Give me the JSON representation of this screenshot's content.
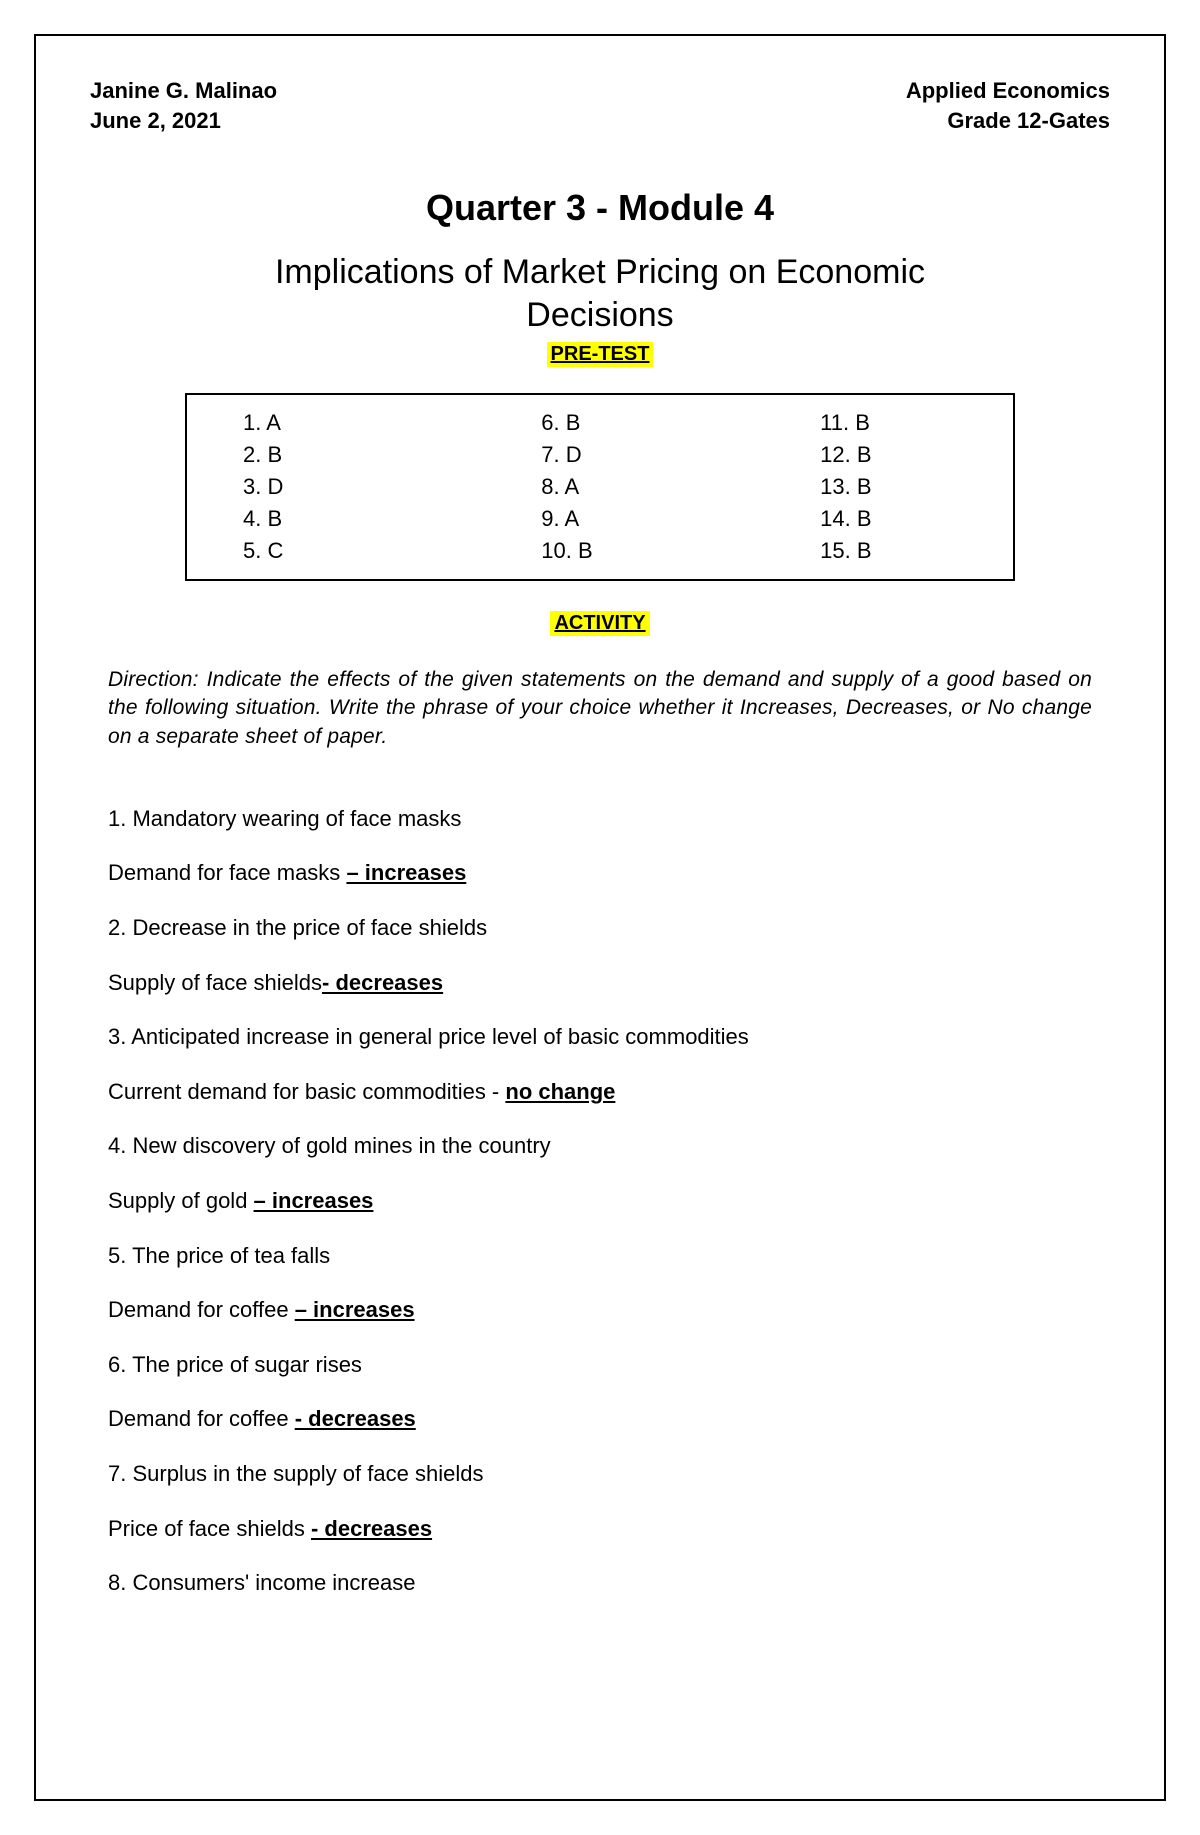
{
  "header": {
    "left_name": "Janine G. Malinao",
    "left_date": "June 2, 2021",
    "right_subject": "Applied Economics",
    "right_class": "Grade 12-Gates"
  },
  "module": {
    "title": "Quarter 3 - Module 4",
    "subtitle": "Implications of Market Pricing on Economic Decisions"
  },
  "labels": {
    "pretest": "PRE-TEST",
    "activity": "ACTIVITY"
  },
  "pretest": {
    "col1": [
      "1.  A",
      "2.  B",
      "3.  D",
      "4.  B",
      "5.  C"
    ],
    "col2": [
      "6.  B",
      "7.  D",
      "8.  A",
      "9.  A",
      "10. B"
    ],
    "col3": [
      "11. B",
      "12. B",
      "13. B",
      "14. B",
      "15. B"
    ]
  },
  "direction": "Direction: Indicate the effects of the given statements on the demand and supply of a good based on the following situation. Write the phrase of your choice whether it Increases, Decreases, or No change on a separate sheet of paper.",
  "activity": [
    {
      "q": "1. Mandatory wearing of face masks",
      "stem": "Demand for face masks ",
      "ans": "– increases"
    },
    {
      "q": "2. Decrease in the price of face shields",
      "stem": "Supply of face shields",
      "ans": "- decreases"
    },
    {
      "q": "3. Anticipated increase in general price level of basic commodities",
      "stem": "Current demand for basic commodities - ",
      "ans": "no change"
    },
    {
      "q": "4. New discovery of gold mines in the country",
      "stem": "Supply of gold ",
      "ans": "– increases"
    },
    {
      "q": "5. The price of tea falls",
      "stem": "Demand for coffee ",
      "ans": "– increases"
    },
    {
      "q": "6. The price of sugar rises",
      "stem": "Demand for coffee ",
      "ans": "- decreases"
    },
    {
      "q": "7. Surplus in the supply of face shields",
      "stem": "Price of face shields ",
      "ans": "- decreases"
    },
    {
      "q": "8. Consumers' income increase",
      "stem": "",
      "ans": ""
    }
  ]
}
